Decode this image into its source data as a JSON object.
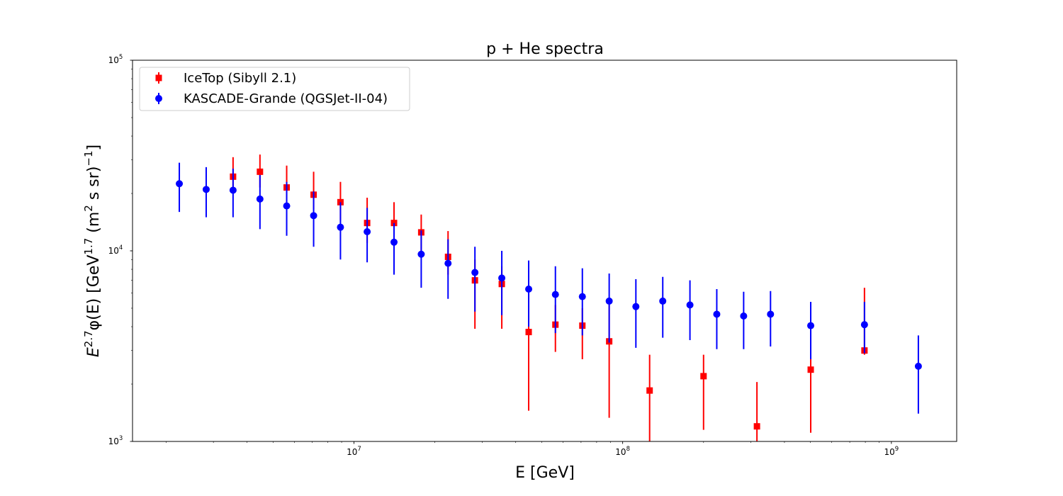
{
  "chart_data": {
    "type": "scatter",
    "title": "p + He spectra",
    "xlabel": "E [GeV]",
    "ylabel_parts": [
      "E",
      "2.7",
      "φ(E) [GeV",
      "1.7",
      " (m",
      "2",
      " s sr)",
      "−1",
      "]"
    ],
    "xscale": "log",
    "yscale": "log",
    "xlim": [
      1500000,
      1750000000
    ],
    "ylim": [
      1000,
      100000
    ],
    "x_ticks": [
      {
        "value": 10000000,
        "base": "10",
        "exp": "7"
      },
      {
        "value": 100000000,
        "base": "10",
        "exp": "8"
      },
      {
        "value": 1000000000,
        "base": "10",
        "exp": "9"
      }
    ],
    "y_ticks": [
      {
        "value": 1000,
        "base": "10",
        "exp": "3"
      },
      {
        "value": 10000,
        "base": "10",
        "exp": "4"
      },
      {
        "value": 100000,
        "base": "10",
        "exp": "5"
      }
    ],
    "grid": false,
    "legend_position": "upper-left",
    "series": [
      {
        "name": "IceTop (Sibyll 2.1)",
        "marker": "square",
        "color": "#ff0000",
        "points": [
          {
            "x": 3550000,
            "y": 24500,
            "lo": 20500,
            "hi": 31000
          },
          {
            "x": 4470000,
            "y": 26000,
            "lo": 21500,
            "hi": 32000
          },
          {
            "x": 5620000,
            "y": 21500,
            "lo": 18000,
            "hi": 28000
          },
          {
            "x": 7080000,
            "y": 19700,
            "lo": 16500,
            "hi": 26000
          },
          {
            "x": 8910000,
            "y": 18000,
            "lo": 14500,
            "hi": 23000
          },
          {
            "x": 11200000,
            "y": 14000,
            "lo": 11000,
            "hi": 19000
          },
          {
            "x": 14100000,
            "y": 14000,
            "lo": 11000,
            "hi": 18000
          },
          {
            "x": 17800000,
            "y": 12500,
            "lo": 10000,
            "hi": 15500
          },
          {
            "x": 22400000,
            "y": 9300,
            "lo": 7500,
            "hi": 12700
          },
          {
            "x": 28200000,
            "y": 7000,
            "lo": 3900,
            "hi": 9000
          },
          {
            "x": 35500000,
            "y": 6700,
            "lo": 3900,
            "hi": 8300
          },
          {
            "x": 44700000,
            "y": 3750,
            "lo": 1450,
            "hi": 6000
          },
          {
            "x": 56200000,
            "y": 4100,
            "lo": 2950,
            "hi": 5200
          },
          {
            "x": 70800000,
            "y": 4050,
            "lo": 2700,
            "hi": 5000
          },
          {
            "x": 89100000,
            "y": 3350,
            "lo": 1330,
            "hi": 5300
          },
          {
            "x": 126000000,
            "y": 1850,
            "lo": 980,
            "hi": 2850
          },
          {
            "x": 200000000,
            "y": 2200,
            "lo": 1150,
            "hi": 2850
          },
          {
            "x": 316000000,
            "y": 1200,
            "lo": 960,
            "hi": 2050
          },
          {
            "x": 501000000,
            "y": 2380,
            "lo": 1110,
            "hi": 3850
          },
          {
            "x": 794000000,
            "y": 3000,
            "lo": 2850,
            "hi": 6400
          }
        ]
      },
      {
        "name": "KASCADE-Grande (QGSJet-II-04)",
        "marker": "circle",
        "color": "#0000ff",
        "points": [
          {
            "x": 2240000,
            "y": 22500,
            "lo": 16000,
            "hi": 29000
          },
          {
            "x": 2820000,
            "y": 21000,
            "lo": 15000,
            "hi": 27500
          },
          {
            "x": 3550000,
            "y": 20800,
            "lo": 15000,
            "hi": 27000
          },
          {
            "x": 4470000,
            "y": 18700,
            "lo": 13000,
            "hi": 25000
          },
          {
            "x": 5620000,
            "y": 17200,
            "lo": 12000,
            "hi": 23000
          },
          {
            "x": 7080000,
            "y": 15300,
            "lo": 10500,
            "hi": 20500
          },
          {
            "x": 8910000,
            "y": 13300,
            "lo": 9000,
            "hi": 18000
          },
          {
            "x": 11200000,
            "y": 12600,
            "lo": 8700,
            "hi": 16800
          },
          {
            "x": 14100000,
            "y": 11100,
            "lo": 7500,
            "hi": 14000
          },
          {
            "x": 17800000,
            "y": 9600,
            "lo": 6400,
            "hi": 12800
          },
          {
            "x": 22400000,
            "y": 8600,
            "lo": 5600,
            "hi": 11500
          },
          {
            "x": 28200000,
            "y": 7700,
            "lo": 4800,
            "hi": 10500
          },
          {
            "x": 35500000,
            "y": 7200,
            "lo": 4600,
            "hi": 10000
          },
          {
            "x": 44700000,
            "y": 6300,
            "lo": 4000,
            "hi": 8900
          },
          {
            "x": 56200000,
            "y": 5900,
            "lo": 3700,
            "hi": 8300
          },
          {
            "x": 70800000,
            "y": 5750,
            "lo": 3600,
            "hi": 8100
          },
          {
            "x": 89100000,
            "y": 5450,
            "lo": 3300,
            "hi": 7600
          },
          {
            "x": 112000000,
            "y": 5100,
            "lo": 3100,
            "hi": 7100
          },
          {
            "x": 141000000,
            "y": 5450,
            "lo": 3500,
            "hi": 7300
          },
          {
            "x": 178000000,
            "y": 5200,
            "lo": 3400,
            "hi": 7000
          },
          {
            "x": 224000000,
            "y": 4650,
            "lo": 3050,
            "hi": 6300
          },
          {
            "x": 282000000,
            "y": 4550,
            "lo": 3050,
            "hi": 6100
          },
          {
            "x": 355000000,
            "y": 4650,
            "lo": 3150,
            "hi": 6150
          },
          {
            "x": 501000000,
            "y": 4050,
            "lo": 2700,
            "hi": 5400
          },
          {
            "x": 794000000,
            "y": 4100,
            "lo": 2900,
            "hi": 5400
          },
          {
            "x": 1260000000,
            "y": 2480,
            "lo": 1400,
            "hi": 3600
          }
        ]
      }
    ]
  }
}
